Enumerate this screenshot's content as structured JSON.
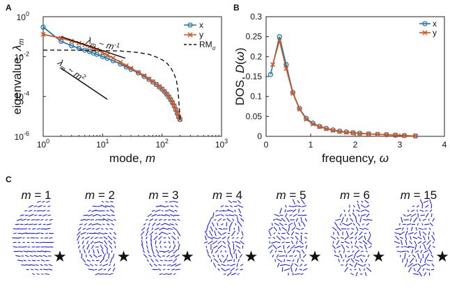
{
  "panels": {
    "A": {
      "letter": "A"
    },
    "B": {
      "letter": "B"
    },
    "C": {
      "letter": "C"
    }
  },
  "chart_data": [
    {
      "type": "line",
      "panel": "A",
      "xscale": "log",
      "yscale": "log",
      "xlim": [
        1,
        1000
      ],
      "ylim": [
        1e-06,
        1
      ],
      "xlabel": "mode, m",
      "ylabel": "eigenvalue, λ_m",
      "xticks": [
        {
          "v": 1,
          "label": "10",
          "exp": "0"
        },
        {
          "v": 10,
          "label": "10",
          "exp": "1"
        },
        {
          "v": 100,
          "label": "10",
          "exp": "2"
        },
        {
          "v": 1000,
          "label": "10",
          "exp": "3"
        }
      ],
      "yticks": [
        {
          "v": 1e-06,
          "label": "10",
          "exp": "-6"
        },
        {
          "v": 0.0001,
          "label": "10",
          "exp": "-4"
        },
        {
          "v": 0.01,
          "label": "10",
          "exp": "-2"
        },
        {
          "v": 1,
          "label": "10",
          "exp": "0"
        }
      ],
      "series": [
        {
          "name": "x",
          "marker": "circle",
          "color": "#1f77b4",
          "x": [
            1,
            2,
            3,
            4,
            5,
            6,
            7,
            8,
            10,
            12,
            15,
            20,
            25,
            30,
            40,
            50,
            60,
            70,
            80,
            90,
            100,
            110,
            120,
            130,
            140,
            150,
            160,
            170,
            180,
            190,
            200
          ],
          "y": [
            0.3,
            0.058,
            0.035,
            0.026,
            0.021,
            0.018,
            0.015,
            0.013,
            0.01,
            0.0082,
            0.0062,
            0.0042,
            0.003,
            0.0023,
            0.0015,
            0.001,
            0.00072,
            0.00053,
            0.0004,
            0.0003,
            0.00023,
            0.00017,
            0.00013,
            9.5e-05,
            6.8e-05,
            4.8e-05,
            3.3e-05,
            2.2e-05,
            1.4e-05,
            9.5e-06,
            7e-06
          ]
        },
        {
          "name": "y",
          "marker": "cross",
          "color": "#d95319",
          "x": [
            1,
            2,
            3,
            4,
            5,
            6,
            7,
            8,
            10,
            12,
            15,
            20,
            25,
            30,
            40,
            50,
            60,
            70,
            80,
            90,
            100,
            110,
            120,
            130,
            140,
            150,
            160,
            170,
            180,
            190,
            200
          ],
          "y": [
            0.13,
            0.085,
            0.06,
            0.047,
            0.039,
            0.031,
            0.026,
            0.022,
            0.016,
            0.012,
            0.0085,
            0.0052,
            0.0035,
            0.0026,
            0.0016,
            0.0011,
            0.00076,
            0.00055,
            0.00041,
            0.00031,
            0.00024,
            0.00018,
            0.00013,
            9.7e-05,
            7e-05,
            5e-05,
            3.4e-05,
            2.2e-05,
            1.5e-05,
            9.8e-06,
            7.2e-06
          ]
        },
        {
          "name": "RM_σ",
          "marker": "none",
          "style": "dashed",
          "color": "#111111",
          "x": [
            1,
            3,
            10,
            20,
            40,
            60,
            80,
            100,
            120,
            140,
            160,
            175,
            185,
            195,
            200
          ],
          "y": [
            0.021,
            0.021,
            0.02,
            0.019,
            0.016,
            0.013,
            0.0095,
            0.007,
            0.0047,
            0.0028,
            0.0013,
            0.0006,
            0.0002,
            3e-05,
            7e-06
          ]
        }
      ],
      "reference_lines": [
        {
          "label": "λ_m ~ m^-1",
          "slope": -1,
          "x": [
            2,
            24
          ],
          "y": [
            0.1,
            0.0083
          ]
        },
        {
          "label": "λ_m ~ m^-2",
          "slope": -2,
          "x": [
            2,
            12
          ],
          "y": [
            0.0026,
            7.2e-05
          ]
        }
      ],
      "legend": {
        "placement": "top-right",
        "entries": [
          "x",
          "y",
          "RM_σ"
        ]
      }
    },
    {
      "type": "line",
      "panel": "B",
      "xlim": [
        0,
        4
      ],
      "ylim": [
        0,
        0.3
      ],
      "xlabel": "frequency, ω",
      "ylabel": "DOS, D(ω)",
      "xticks": [
        0,
        1,
        2,
        3,
        4
      ],
      "yticks": [
        0,
        0.05,
        0.1,
        0.15,
        0.2,
        0.25,
        0.3
      ],
      "series": [
        {
          "name": "x",
          "marker": "circle",
          "color": "#1f77b4",
          "x": [
            0.1,
            0.3,
            0.45,
            0.6,
            0.75,
            0.9,
            1.05,
            1.2,
            1.35,
            1.5,
            1.65,
            1.8,
            1.95,
            2.1,
            2.3,
            2.5,
            2.7,
            2.9,
            3.1,
            3.35
          ],
          "y": [
            0.155,
            0.25,
            0.18,
            0.11,
            0.07,
            0.045,
            0.033,
            0.025,
            0.02,
            0.016,
            0.013,
            0.011,
            0.009,
            0.008,
            0.006,
            0.005,
            0.004,
            0.003,
            0.002,
            0.001
          ]
        },
        {
          "name": "y",
          "marker": "cross",
          "color": "#d95319",
          "x": [
            0.15,
            0.3,
            0.45,
            0.6,
            0.75,
            0.9,
            1.05,
            1.2,
            1.35,
            1.5,
            1.65,
            1.8,
            1.95,
            2.1,
            2.3,
            2.5,
            2.7,
            2.9,
            3.1,
            3.35
          ],
          "y": [
            0.18,
            0.24,
            0.17,
            0.108,
            0.068,
            0.043,
            0.031,
            0.024,
            0.019,
            0.015,
            0.012,
            0.01,
            0.009,
            0.007,
            0.006,
            0.005,
            0.004,
            0.003,
            0.002,
            0.001
          ]
        }
      ],
      "legend": {
        "placement": "top-right",
        "entries": [
          "x",
          "y"
        ]
      }
    }
  ],
  "vector_fields": {
    "m_symbol": "m",
    "items": [
      {
        "label": "m = 1",
        "m": 1,
        "pattern": "horizontal-left",
        "noise": 0.15
      },
      {
        "label": "m = 2",
        "m": 2,
        "pattern": "swirl-lower",
        "noise": 0.3
      },
      {
        "label": "m = 3",
        "m": 3,
        "pattern": "vortex",
        "noise": 0.3
      },
      {
        "label": "m = 4",
        "m": 4,
        "pattern": "multi-vortex",
        "noise": 0.55
      },
      {
        "label": "m = 5",
        "m": 5,
        "pattern": "disordered",
        "noise": 0.75
      },
      {
        "label": "m = 6",
        "m": 6,
        "pattern": "disordered",
        "noise": 0.85
      },
      {
        "label": "m = 15",
        "m": 15,
        "pattern": "random",
        "noise": 1.0
      }
    ],
    "star_glyph": "★",
    "arrow_color": "#1a1aff"
  }
}
